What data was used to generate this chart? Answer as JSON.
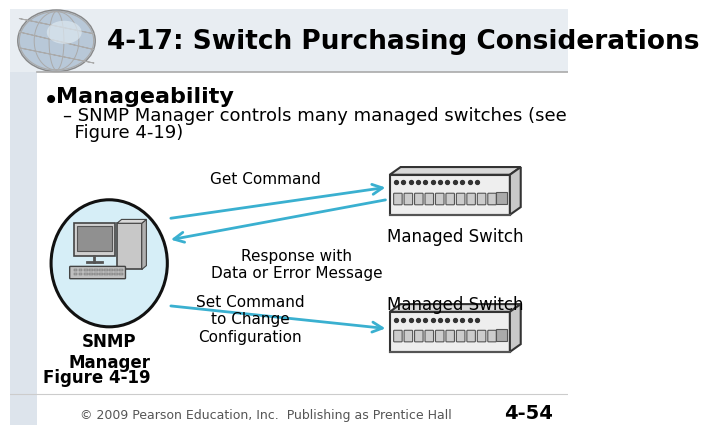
{
  "title": "4-17: Switch Purchasing Considerations",
  "bg_color": "#ffffff",
  "title_color": "#000000",
  "title_fontsize": 19,
  "bullet_text": "Manageability",
  "sub_bullet_line1": "– SNMP Manager controls many managed switches (see",
  "sub_bullet_line2": "  Figure 4-19)",
  "figure_label": "Figure 4-19",
  "footer": "© 2009 Pearson Education, Inc.  Publishing as Prentice Hall",
  "page_num": "4-54",
  "snmp_label": "SNMP\nManager",
  "managed_switch_1": "Managed Switch",
  "managed_switch_2": "Managed Switch",
  "get_command": "Get Command",
  "response": "Response with\nData or Error Message",
  "set_command": "Set Command\nto Change\nConfiguration",
  "arrow_color": "#3ab0d0",
  "ellipse_fill": "#d6eef7",
  "ellipse_edge": "#111111",
  "switch_fill": "#eeeeee",
  "switch_top_fill": "#d8d8d8",
  "switch_right_fill": "#c8c8c8",
  "switch_edge": "#333333",
  "header_line_color": "#aaaaaa",
  "left_bg_color": "#dde4ec"
}
